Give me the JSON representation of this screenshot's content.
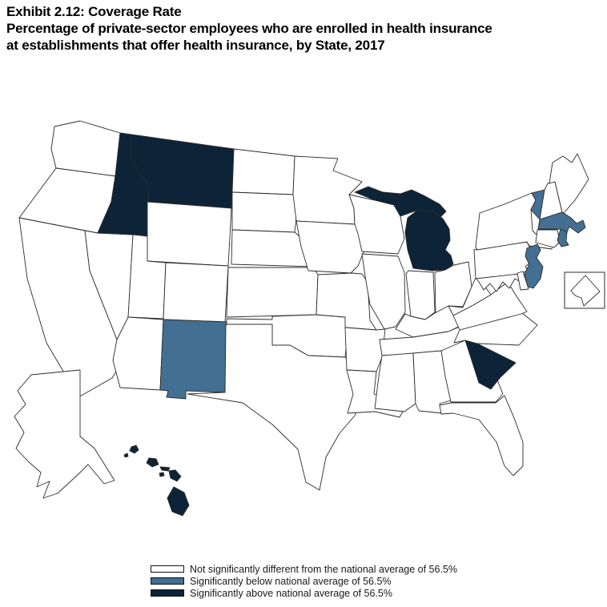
{
  "title": {
    "line1": "Exhibit 2.12: Coverage Rate",
    "line2": "Percentage of private-sector employees who are enrolled in health insurance",
    "line3": "at establishments that offer health insurance, by State, 2017"
  },
  "legend": [
    {
      "key": "not_different",
      "label": "Not significantly different from the national average of 56.5%",
      "color": "#ffffff"
    },
    {
      "key": "below",
      "label": "Significantly below national average of 56.5%",
      "color": "#436f92"
    },
    {
      "key": "above",
      "label": "Significantly above national average of 56.5%",
      "color": "#0d2338"
    }
  ],
  "chart_data": {
    "type": "choropleth-map",
    "title": "Exhibit 2.12: Coverage Rate",
    "subtitle": "Percentage of private-sector employees who are enrolled in health insurance at establishments that offer health insurance, by State, 2017",
    "national_average_pct": 56.5,
    "categories": {
      "not_different": "Not significantly different from the national average of 56.5%",
      "below": "Significantly below national average of 56.5%",
      "above": "Significantly above national average of 56.5%"
    },
    "states": [
      {
        "id": "WA",
        "name": "Washington",
        "category": "not_different"
      },
      {
        "id": "OR",
        "name": "Oregon",
        "category": "not_different"
      },
      {
        "id": "CA",
        "name": "California",
        "category": "not_different"
      },
      {
        "id": "NV",
        "name": "Nevada",
        "category": "not_different"
      },
      {
        "id": "ID",
        "name": "Idaho",
        "category": "above"
      },
      {
        "id": "MT",
        "name": "Montana",
        "category": "above"
      },
      {
        "id": "WY",
        "name": "Wyoming",
        "category": "not_different"
      },
      {
        "id": "UT",
        "name": "Utah",
        "category": "not_different"
      },
      {
        "id": "CO",
        "name": "Colorado",
        "category": "not_different"
      },
      {
        "id": "AZ",
        "name": "Arizona",
        "category": "not_different"
      },
      {
        "id": "NM",
        "name": "New Mexico",
        "category": "below"
      },
      {
        "id": "ND",
        "name": "North Dakota",
        "category": "not_different"
      },
      {
        "id": "SD",
        "name": "South Dakota",
        "category": "not_different"
      },
      {
        "id": "NE",
        "name": "Nebraska",
        "category": "not_different"
      },
      {
        "id": "KS",
        "name": "Kansas",
        "category": "not_different"
      },
      {
        "id": "OK",
        "name": "Oklahoma",
        "category": "not_different"
      },
      {
        "id": "TX",
        "name": "Texas",
        "category": "not_different"
      },
      {
        "id": "MN",
        "name": "Minnesota",
        "category": "not_different"
      },
      {
        "id": "IA",
        "name": "Iowa",
        "category": "not_different"
      },
      {
        "id": "MO",
        "name": "Missouri",
        "category": "not_different"
      },
      {
        "id": "AR",
        "name": "Arkansas",
        "category": "not_different"
      },
      {
        "id": "LA",
        "name": "Louisiana",
        "category": "not_different"
      },
      {
        "id": "WI",
        "name": "Wisconsin",
        "category": "not_different"
      },
      {
        "id": "IL",
        "name": "Illinois",
        "category": "not_different"
      },
      {
        "id": "MI",
        "name": "Michigan",
        "category": "above"
      },
      {
        "id": "IN",
        "name": "Indiana",
        "category": "not_different"
      },
      {
        "id": "OH",
        "name": "Ohio",
        "category": "not_different"
      },
      {
        "id": "KY",
        "name": "Kentucky",
        "category": "not_different"
      },
      {
        "id": "TN",
        "name": "Tennessee",
        "category": "not_different"
      },
      {
        "id": "MS",
        "name": "Mississippi",
        "category": "not_different"
      },
      {
        "id": "AL",
        "name": "Alabama",
        "category": "not_different"
      },
      {
        "id": "GA",
        "name": "Georgia",
        "category": "not_different"
      },
      {
        "id": "SC",
        "name": "South Carolina",
        "category": "above"
      },
      {
        "id": "NC",
        "name": "North Carolina",
        "category": "not_different"
      },
      {
        "id": "FL",
        "name": "Florida",
        "category": "not_different"
      },
      {
        "id": "VA",
        "name": "Virginia",
        "category": "not_different"
      },
      {
        "id": "WV",
        "name": "West Virginia",
        "category": "not_different"
      },
      {
        "id": "MD",
        "name": "Maryland",
        "category": "not_different"
      },
      {
        "id": "PA",
        "name": "Pennsylvania",
        "category": "not_different"
      },
      {
        "id": "NY",
        "name": "New York",
        "category": "not_different"
      },
      {
        "id": "VT",
        "name": "Vermont",
        "category": "below"
      },
      {
        "id": "NH",
        "name": "New Hampshire",
        "category": "not_different"
      },
      {
        "id": "ME",
        "name": "Maine",
        "category": "not_different"
      },
      {
        "id": "MA",
        "name": "Massachusetts",
        "category": "below"
      },
      {
        "id": "CT",
        "name": "Connecticut",
        "category": "not_different"
      },
      {
        "id": "RI",
        "name": "Rhode Island",
        "category": "below"
      },
      {
        "id": "NJ",
        "name": "New Jersey",
        "category": "below"
      },
      {
        "id": "DE",
        "name": "Delaware",
        "category": "not_different"
      },
      {
        "id": "AK",
        "name": "Alaska",
        "category": "not_different"
      },
      {
        "id": "HI",
        "name": "Hawaii",
        "category": "above"
      },
      {
        "id": "DC",
        "name": "District of Columbia",
        "category": "not_different"
      }
    ]
  }
}
